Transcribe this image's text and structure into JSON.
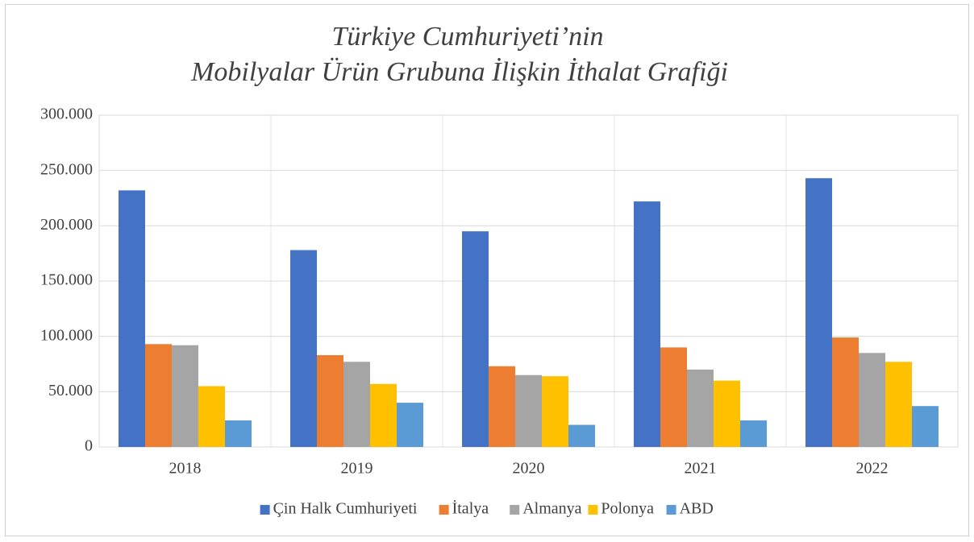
{
  "chart_data": {
    "type": "bar",
    "title": [
      "Türkiye Cumhuriyeti’nin",
      "Mobilyalar Ürün Grubuna İlişkin İthalat Grafiği"
    ],
    "categories": [
      "2018",
      "2019",
      "2020",
      "2021",
      "2022"
    ],
    "series": [
      {
        "name": "Çin Halk Cumhuriyeti",
        "color": "#4472c4",
        "values": [
          232000,
          178000,
          195000,
          222000,
          243000
        ]
      },
      {
        "name": "İtalya",
        "color": "#ed7d31",
        "values": [
          93000,
          83000,
          73000,
          90000,
          99000
        ]
      },
      {
        "name": "Almanya",
        "color": "#a5a5a5",
        "values": [
          92000,
          77000,
          65000,
          70000,
          85000
        ]
      },
      {
        "name": "Polonya",
        "color": "#ffc000",
        "values": [
          55000,
          57000,
          64000,
          60000,
          77000
        ]
      },
      {
        "name": "ABD",
        "color": "#5b9bd5",
        "values": [
          24000,
          40000,
          20000,
          24000,
          37000
        ]
      }
    ],
    "ylim": [
      0,
      300000
    ],
    "yticks": [
      0,
      {
        "value": 50000,
        "label": "50.000"
      },
      {
        "value": 100000,
        "label": "100.000"
      },
      {
        "value": 150000,
        "label": "150.000"
      },
      {
        "value": 200000,
        "label": "200.000"
      },
      {
        "value": 250000,
        "label": "250.000"
      },
      {
        "value": 300000,
        "label": "300.000"
      }
    ],
    "grid": true,
    "legend": "bottom"
  }
}
